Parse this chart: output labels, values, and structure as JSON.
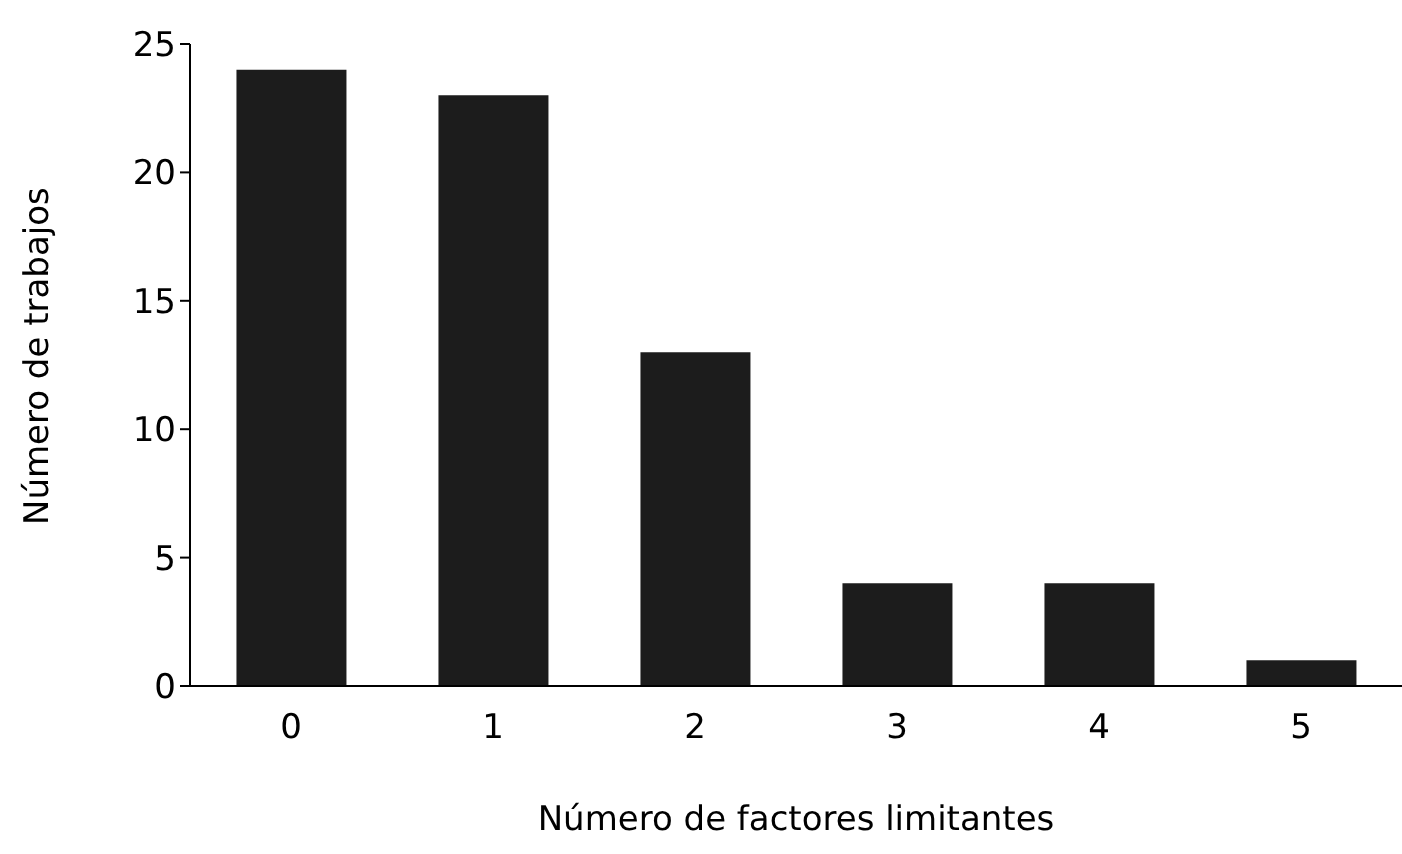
{
  "chart_data": {
    "type": "bar",
    "xlabel": "Número de factores limitantes",
    "ylabel": "Número de trabajos",
    "categories": [
      "0",
      "1",
      "2",
      "3",
      "4",
      "5"
    ],
    "values": [
      24,
      23,
      13,
      4,
      4,
      1
    ],
    "color": "#1c1c1c",
    "ylim": [
      0,
      25
    ],
    "yticks": [
      0,
      5,
      10,
      15,
      20,
      25
    ],
    "grid": false,
    "legend": false
  }
}
